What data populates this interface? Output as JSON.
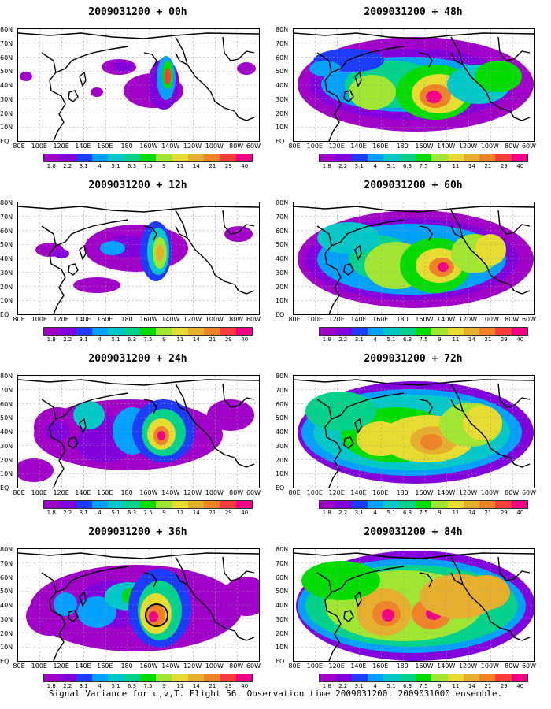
{
  "panels": [
    {
      "title": "2009031200 + 00h",
      "lead_hours": 0
    },
    {
      "title": "2009031200 + 48h",
      "lead_hours": 48
    },
    {
      "title": "2009031200 + 12h",
      "lead_hours": 12
    },
    {
      "title": "2009031200 + 60h",
      "lead_hours": 60
    },
    {
      "title": "2009031200 + 24h",
      "lead_hours": 24
    },
    {
      "title": "2009031200 + 72h",
      "lead_hours": 72
    },
    {
      "title": "2009031200 + 36h",
      "lead_hours": 36
    },
    {
      "title": "2009031200 + 84h",
      "lead_hours": 84
    }
  ],
  "lon_labels": [
    "80E",
    "100E",
    "120E",
    "140E",
    "160E",
    "180",
    "160W",
    "140W",
    "120W",
    "100W",
    "80W",
    "60W"
  ],
  "lat_labels": [
    "80N",
    "70N",
    "60N",
    "50N",
    "40N",
    "30N",
    "20N",
    "10N",
    "EQ"
  ],
  "colorbar": {
    "labels": [
      "1.8",
      "2.2",
      "3.1",
      "4",
      "5.1",
      "6.3",
      "7.5",
      "9",
      "11",
      "14",
      "21",
      "29",
      "40"
    ],
    "colors": [
      "#a000c8",
      "#8200dc",
      "#1e3cff",
      "#00a0ff",
      "#00c8c8",
      "#00d28c",
      "#00dc00",
      "#a0e632",
      "#e6dc32",
      "#e6af2d",
      "#f08228",
      "#fa3c3c",
      "#f00082"
    ]
  },
  "footer": "Signal Variance for u,v,T. Flight 56. Observation time 2009031200. 2009031000 ensemble.",
  "map_data": {
    "domain": {
      "lon": [
        "80E",
        "60W"
      ],
      "lat": [
        "EQ",
        "80N"
      ]
    },
    "field": "Signal Variance for u,v,T",
    "highlight_circle_panel": "2009031200 + 36h"
  }
}
